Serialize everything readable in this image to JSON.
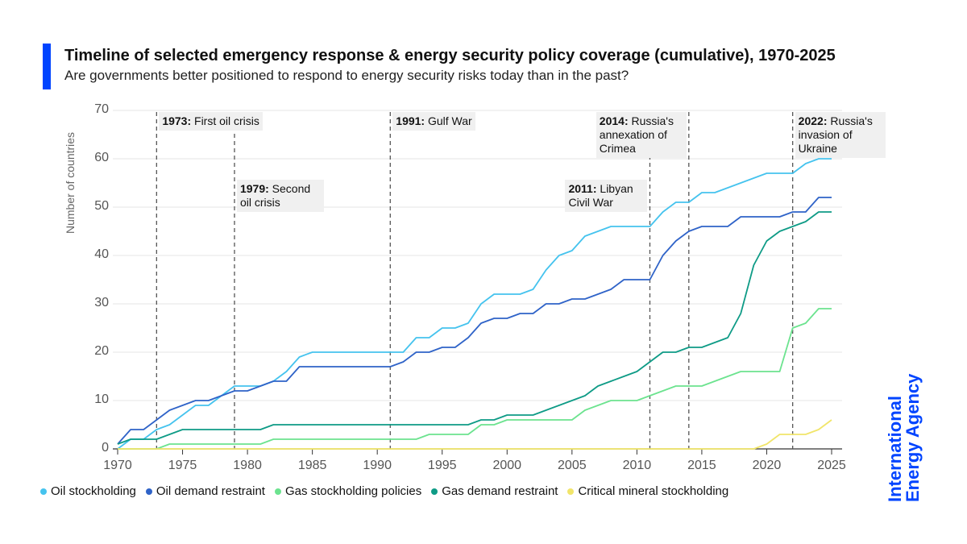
{
  "header": {
    "title": "Timeline of selected emergency response & energy security policy coverage (cumulative), 1970-2025",
    "subtitle": "Are governments better positioned to respond to energy security risks today than in the past?"
  },
  "logo": {
    "line1": "International",
    "line2": "Energy Agency",
    "color": "#0044ff"
  },
  "chart_data": {
    "type": "line",
    "title": "Timeline of selected emergency response & energy security policy coverage (cumulative), 1970-2025",
    "ylabel": "Number of countries",
    "xlim": [
      1970,
      2025
    ],
    "ylim": [
      0,
      70
    ],
    "yticks": [
      0,
      10,
      20,
      30,
      40,
      50,
      60,
      70
    ],
    "xticks": [
      1970,
      1975,
      1980,
      1985,
      1990,
      1995,
      2000,
      2005,
      2010,
      2015,
      2020,
      2025
    ],
    "grid": "horizontal",
    "legend": "bottom",
    "x": [
      1970,
      1971,
      1972,
      1973,
      1974,
      1975,
      1976,
      1977,
      1978,
      1979,
      1980,
      1981,
      1982,
      1983,
      1984,
      1985,
      1986,
      1987,
      1988,
      1989,
      1990,
      1991,
      1992,
      1993,
      1994,
      1995,
      1996,
      1997,
      1998,
      1999,
      2000,
      2001,
      2002,
      2003,
      2004,
      2005,
      2006,
      2007,
      2008,
      2009,
      2010,
      2011,
      2012,
      2013,
      2014,
      2015,
      2016,
      2017,
      2018,
      2019,
      2020,
      2021,
      2022,
      2023,
      2024,
      2025
    ],
    "series": [
      {
        "name": "Oil stockholding",
        "color": "#45c3ee",
        "values": [
          0,
          2,
          2,
          4,
          5,
          7,
          9,
          9,
          11,
          13,
          13,
          13,
          14,
          16,
          19,
          20,
          20,
          20,
          20,
          20,
          20,
          20,
          20,
          23,
          23,
          25,
          25,
          26,
          30,
          32,
          32,
          32,
          33,
          37,
          40,
          41,
          44,
          45,
          46,
          46,
          46,
          46,
          49,
          51,
          51,
          53,
          53,
          54,
          55,
          56,
          57,
          57,
          57,
          59,
          60,
          60
        ]
      },
      {
        "name": "Oil demand restraint",
        "color": "#2f63c8",
        "values": [
          1,
          4,
          4,
          6,
          8,
          9,
          10,
          10,
          11,
          12,
          12,
          13,
          14,
          14,
          17,
          17,
          17,
          17,
          17,
          17,
          17,
          17,
          18,
          20,
          20,
          21,
          21,
          23,
          26,
          27,
          27,
          28,
          28,
          30,
          30,
          31,
          31,
          32,
          33,
          35,
          35,
          35,
          40,
          43,
          45,
          46,
          46,
          46,
          48,
          48,
          48,
          48,
          49,
          49,
          52,
          52
        ]
      },
      {
        "name": "Gas stockholding policies",
        "color": "#6ce38f",
        "values": [
          0,
          0,
          0,
          0,
          1,
          1,
          1,
          1,
          1,
          1,
          1,
          1,
          2,
          2,
          2,
          2,
          2,
          2,
          2,
          2,
          2,
          2,
          2,
          2,
          3,
          3,
          3,
          3,
          5,
          5,
          6,
          6,
          6,
          6,
          6,
          6,
          8,
          9,
          10,
          10,
          10,
          11,
          12,
          13,
          13,
          13,
          14,
          15,
          16,
          16,
          16,
          16,
          25,
          26,
          29,
          29
        ]
      },
      {
        "name": "Gas demand restraint",
        "color": "#0e9b86",
        "values": [
          1,
          2,
          2,
          2,
          3,
          4,
          4,
          4,
          4,
          4,
          4,
          4,
          5,
          5,
          5,
          5,
          5,
          5,
          5,
          5,
          5,
          5,
          5,
          5,
          5,
          5,
          5,
          5,
          6,
          6,
          7,
          7,
          7,
          8,
          9,
          10,
          11,
          13,
          14,
          15,
          16,
          18,
          20,
          20,
          21,
          21,
          22,
          23,
          28,
          38,
          43,
          45,
          46,
          47,
          49,
          49
        ]
      },
      {
        "name": "Critical mineral stockholding",
        "color": "#f1e56a",
        "values": [
          0,
          0,
          0,
          0,
          0,
          0,
          0,
          0,
          0,
          0,
          0,
          0,
          0,
          0,
          0,
          0,
          0,
          0,
          0,
          0,
          0,
          0,
          0,
          0,
          0,
          0,
          0,
          0,
          0,
          0,
          0,
          0,
          0,
          0,
          0,
          0,
          0,
          0,
          0,
          0,
          0,
          0,
          0,
          0,
          0,
          0,
          0,
          0,
          0,
          0,
          1,
          3,
          3,
          3,
          4,
          6
        ]
      }
    ],
    "annotations": [
      {
        "year": 1973,
        "bold": "1973:",
        "text": " First oil crisis"
      },
      {
        "year": 1979,
        "bold": "1979:",
        "text": " Second oil crisis"
      },
      {
        "year": 1991,
        "bold": "1991:",
        "text": " Gulf War"
      },
      {
        "year": 2011,
        "bold": "2011:",
        "text": " Libyan Civil War"
      },
      {
        "year": 2014,
        "bold": "2014:",
        "text": " Russia's annexation of Crimea"
      },
      {
        "year": 2022,
        "bold": "2022:",
        "text": " Russia's invasion of Ukraine"
      }
    ]
  }
}
